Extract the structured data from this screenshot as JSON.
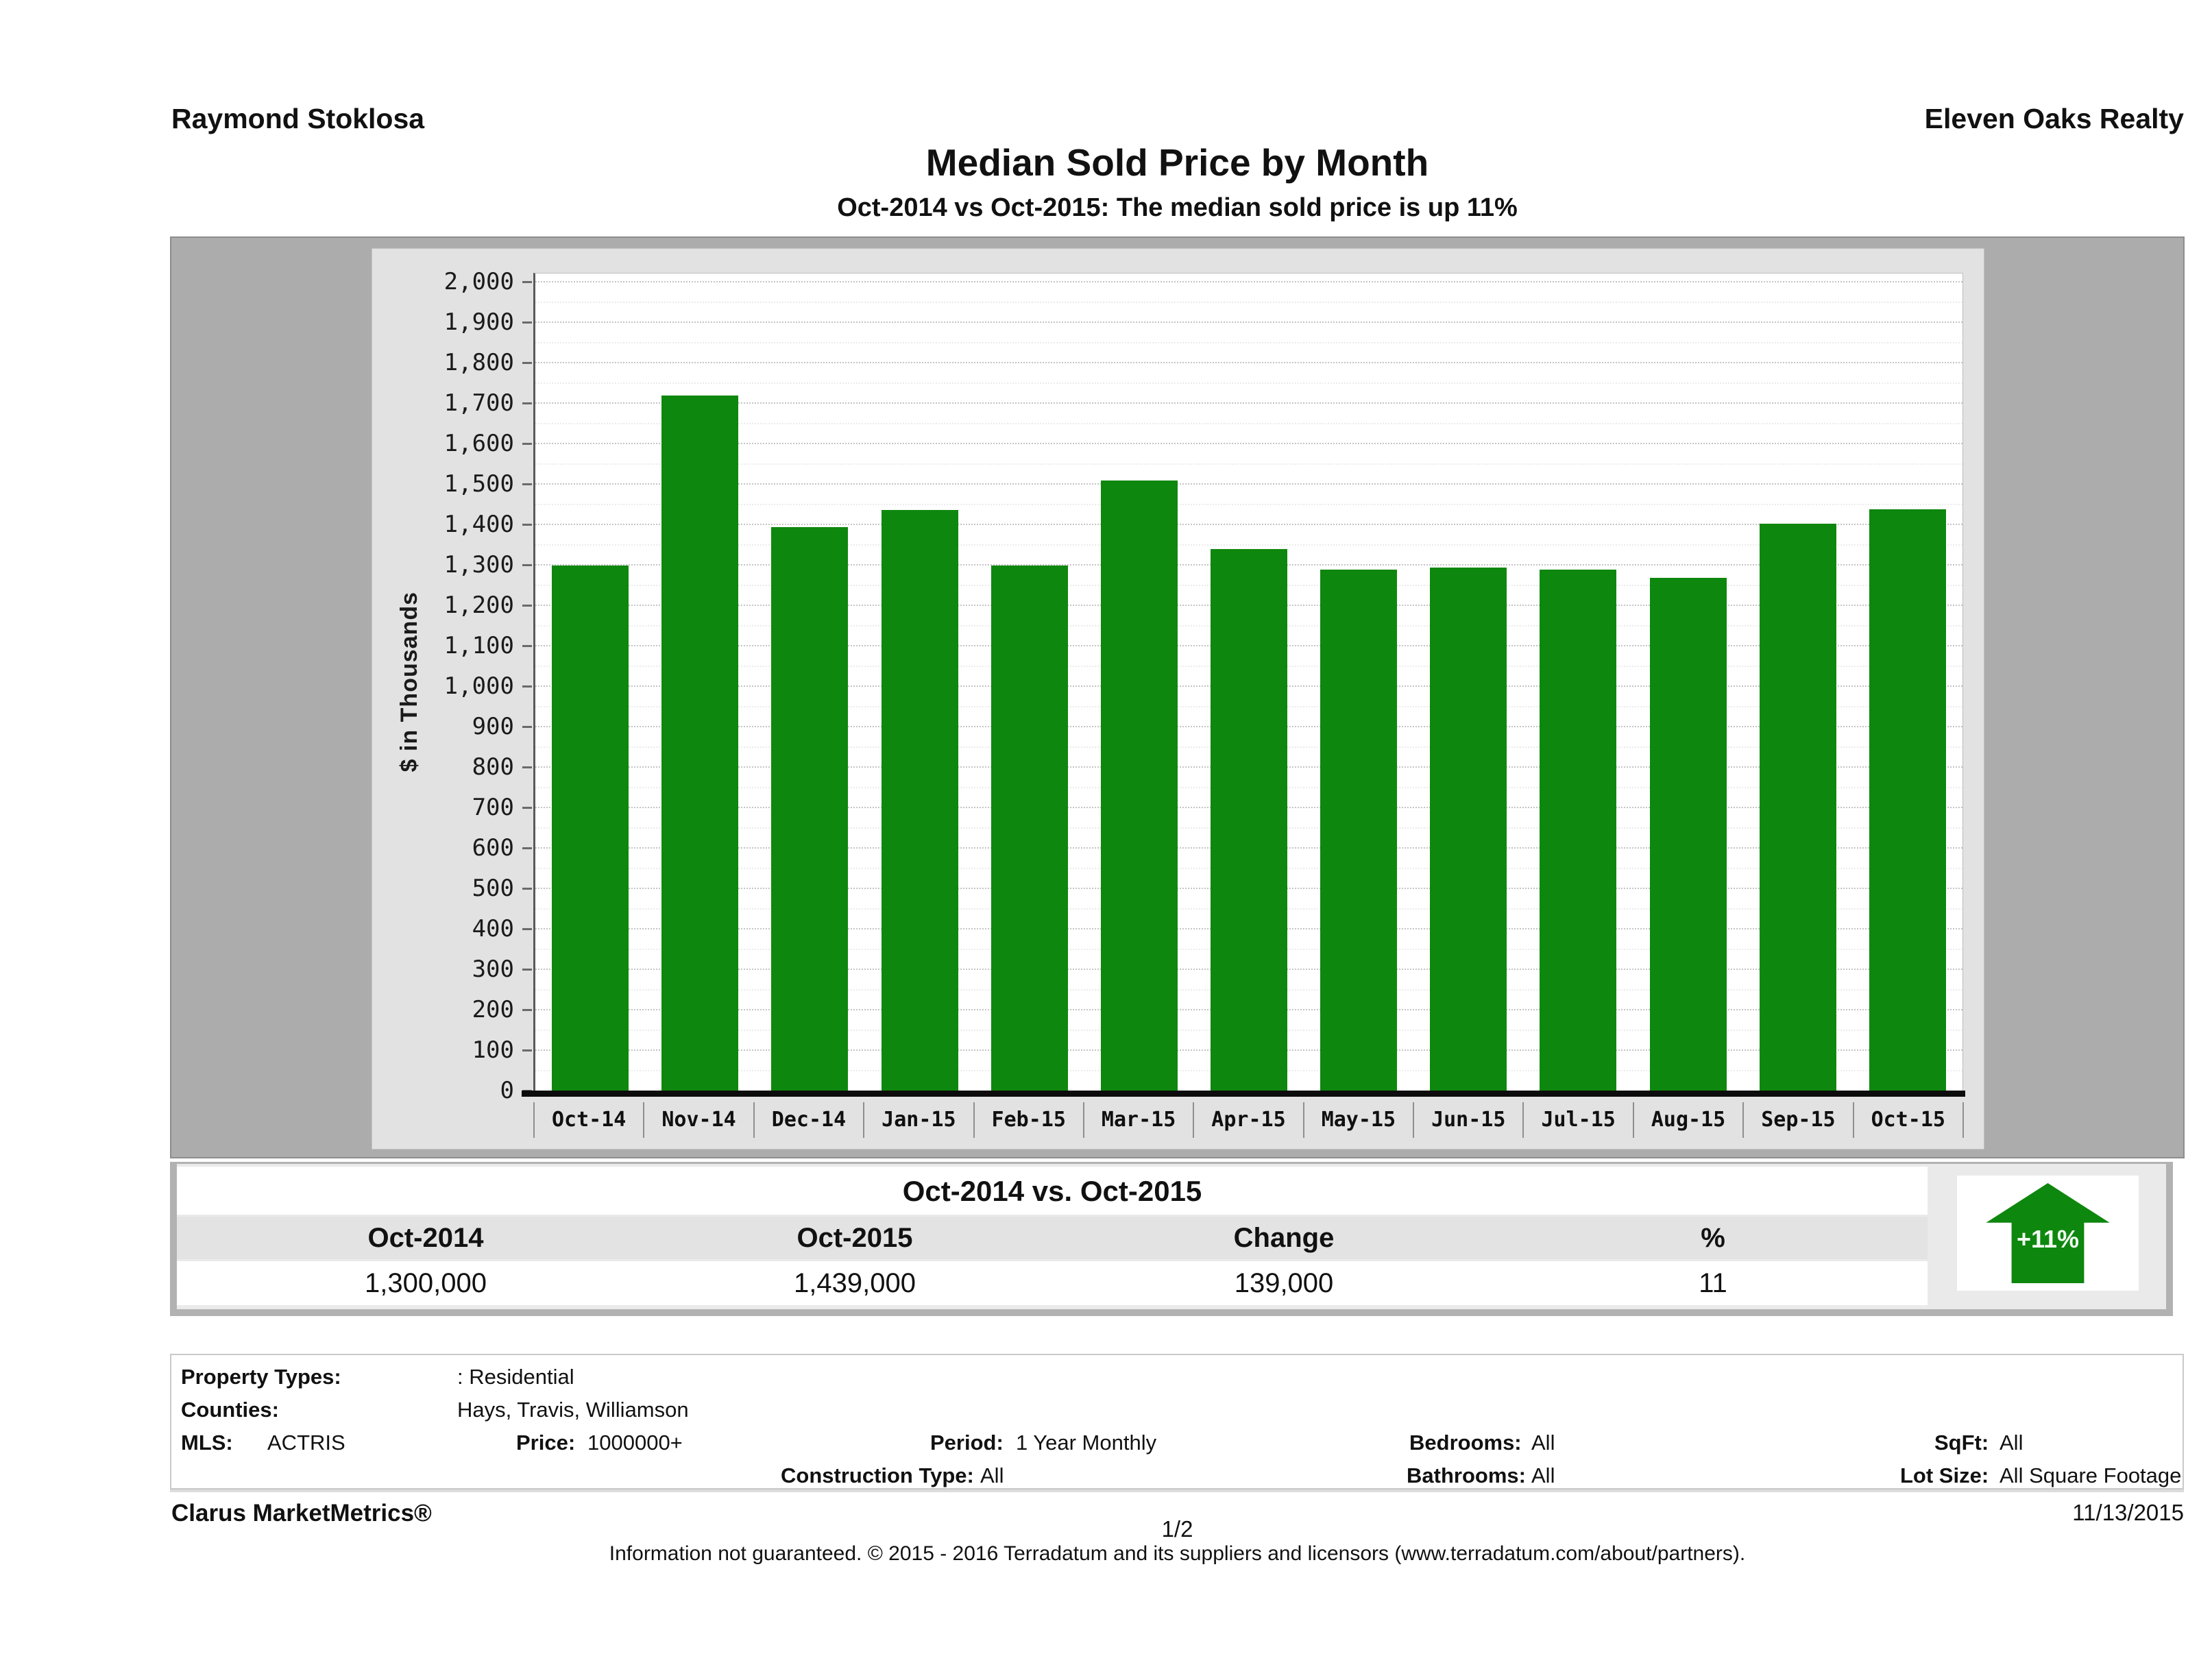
{
  "header": {
    "agent": "Raymond Stoklosa",
    "company": "Eleven Oaks Realty",
    "title": "Median Sold Price by Month",
    "subtitle": "Oct-2014 vs Oct-2015: The median sold price is up 11%"
  },
  "chart_data": {
    "type": "bar",
    "title": "Median Sold Price by Month",
    "xlabel": "",
    "ylabel": "$ in Thousands",
    "ylim": [
      0,
      2000
    ],
    "ytick_step": 100,
    "grid": true,
    "legend": "none",
    "bar_color": "#0e870e",
    "categories": [
      "Oct-14",
      "Nov-14",
      "Dec-14",
      "Jan-15",
      "Feb-15",
      "Mar-15",
      "Apr-15",
      "May-15",
      "Jun-15",
      "Jul-15",
      "Aug-15",
      "Sep-15",
      "Oct-15"
    ],
    "values": [
      1300,
      1720,
      1395,
      1437,
      1300,
      1510,
      1340,
      1290,
      1295,
      1290,
      1270,
      1403,
      1439
    ],
    "values_unit": "thousands of dollars"
  },
  "summary": {
    "title": "Oct-2014 vs. Oct-2015",
    "columns": [
      "Oct-2014",
      "Oct-2015",
      "Change",
      "%"
    ],
    "values": [
      "1,300,000",
      "1,439,000",
      "139,000",
      "11"
    ],
    "badge_label": "+11%",
    "badge_direction": "up"
  },
  "filters": {
    "property_types_label": "Property Types:",
    "property_types": ": Residential",
    "counties_label": "Counties:",
    "counties": "Hays, Travis, Williamson",
    "mls_label": "MLS:",
    "mls": "ACTRIS",
    "price_label": "Price:",
    "price": "1000000+",
    "period_label": "Period:",
    "period": "1 Year Monthly",
    "construction_label": "Construction Type:",
    "construction": "All",
    "bedrooms_label": "Bedrooms:",
    "bedrooms": "All",
    "bathrooms_label": "Bathrooms:",
    "bathrooms": "All",
    "sqft_label": "SqFt:",
    "sqft": "All",
    "lot_size_label": "Lot Size:",
    "lot_size": "All Square Footage"
  },
  "footer": {
    "product": "Clarus MarketMetrics®",
    "page": "1/2",
    "date": "11/13/2015",
    "disclaimer": "Information not guaranteed. © 2015 - 2016 Terradatum and its suppliers and licensors (www.terradatum.com/about/partners)."
  },
  "colors": {
    "bar_green": "#0e870e",
    "frame_gray": "#acacac",
    "panel_gray": "#e2e2e2",
    "summary_bg": "#eaeaea"
  }
}
